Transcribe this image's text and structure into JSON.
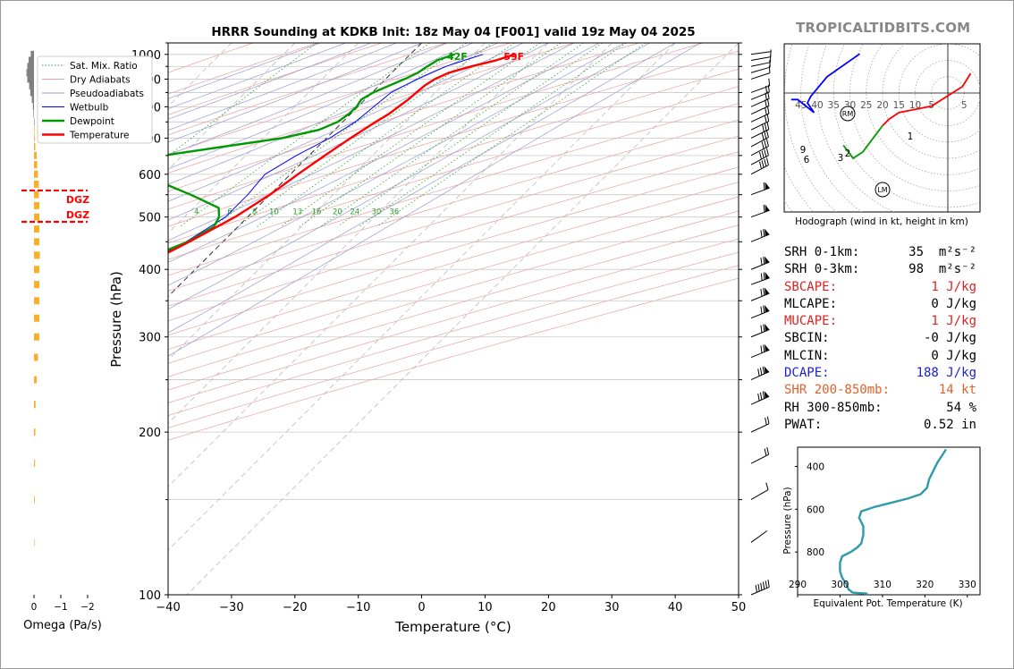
{
  "brand": "TROPICALTIDBITS.COM",
  "title": "HRRR Sounding at KDKB Init: 18z May 04 [F001] valid 19z May 04 2025",
  "legend": [
    {
      "label": "Sat. Mix. Ratio",
      "color": "#2ca02c",
      "style": "dotted"
    },
    {
      "label": "Dry Adiabats",
      "color": "#e8a0a0",
      "style": "solid"
    },
    {
      "label": "Pseudoadiabats",
      "color": "#9a9ad0",
      "style": "solid"
    },
    {
      "label": "Wetbulb",
      "color": "#0000ff",
      "style": "solid"
    },
    {
      "label": "Dewpoint",
      "color": "#009900",
      "style": "solid"
    },
    {
      "label": "Temperature",
      "color": "#ff0000",
      "style": "solid"
    }
  ],
  "colors": {
    "temperature": "#ff0000",
    "dewpoint": "#009900",
    "wetbulb": "#0000ff",
    "omega_up": "#f7b02b",
    "omega_down": "#808080",
    "theta_e": "#2e9aaa",
    "dgz": "#ff0000"
  },
  "chart_data": [
    {
      "type": "line",
      "name": "skewt",
      "title": "HRRR Sounding at KDKB Init: 18z May 04 [F001] valid 19z May 04 2025",
      "xlabel": "Temperature (°C)",
      "ylabel": "Pressure (hPa)",
      "xlim": [
        -40,
        50
      ],
      "ylim": [
        1050,
        100
      ],
      "log_y": true,
      "x_ticks": [
        "−40",
        "−30",
        "−20",
        "−10",
        "0",
        "10",
        "20",
        "30",
        "40",
        "50"
      ],
      "y_ticks": [
        "100",
        "200",
        "300",
        "400",
        "500",
        "600",
        "700",
        "800",
        "900",
        "1000"
      ],
      "mixing_ratio_labels": [
        "1",
        "4",
        "6",
        "8",
        "10",
        "13",
        "16",
        "20",
        "24",
        "30",
        "36"
      ],
      "temperature": [
        [
          1000,
          16.5
        ],
        [
          975,
          14.5
        ],
        [
          950,
          11.5
        ],
        [
          925,
          9.0
        ],
        [
          900,
          7.8
        ],
        [
          875,
          7.2
        ],
        [
          850,
          7.0
        ],
        [
          825,
          6.8
        ],
        [
          800,
          6.4
        ],
        [
          775,
          6.0
        ],
        [
          750,
          5.2
        ],
        [
          700,
          3.8
        ],
        [
          650,
          2.5
        ],
        [
          600,
          1.2
        ],
        [
          550,
          0.0
        ],
        [
          500,
          -2.0
        ],
        [
          450,
          -5.3
        ],
        [
          400,
          -9.5
        ],
        [
          350,
          -14.5
        ],
        [
          300,
          -20.5
        ],
        [
          250,
          -27.5
        ],
        [
          225,
          -32.0
        ],
        [
          200,
          -34.5
        ],
        [
          175,
          -39.5
        ],
        [
          150,
          -44.5
        ],
        [
          125,
          -51.0
        ],
        [
          100,
          -59.0
        ]
      ],
      "dewpoint": [
        [
          1000,
          7.0
        ],
        [
          975,
          5.2
        ],
        [
          950,
          4.6
        ],
        [
          925,
          4.1
        ],
        [
          900,
          3.0
        ],
        [
          875,
          1.6
        ],
        [
          850,
          0.2
        ],
        [
          825,
          -0.6
        ],
        [
          800,
          -0.2
        ],
        [
          775,
          -0.3
        ],
        [
          750,
          -0.8
        ],
        [
          725,
          -2.5
        ],
        [
          700,
          -7.0
        ],
        [
          650,
          -23.0
        ],
        [
          620,
          -27.0
        ],
        [
          600,
          -23.5
        ],
        [
          550,
          -12.5
        ],
        [
          520,
          -6.0
        ],
        [
          500,
          -4.5
        ],
        [
          480,
          -3.8
        ],
        [
          450,
          -5.5
        ],
        [
          400,
          -12.0
        ],
        [
          350,
          -19.5
        ],
        [
          300,
          -29.0
        ],
        [
          250,
          -38.0
        ],
        [
          225,
          -42.5
        ],
        [
          200,
          -47.5
        ],
        [
          175,
          -55.0
        ],
        [
          150,
          -66.0
        ],
        [
          125,
          -76.0
        ],
        [
          100,
          -89.0
        ]
      ],
      "wetbulb": [
        [
          1000,
          11.5
        ],
        [
          975,
          9.5
        ],
        [
          950,
          7.5
        ],
        [
          925,
          6.2
        ],
        [
          900,
          5.0
        ],
        [
          850,
          3.0
        ],
        [
          800,
          2.5
        ],
        [
          750,
          2.0
        ],
        [
          700,
          0.5
        ],
        [
          650,
          -2.0
        ],
        [
          600,
          -4.0
        ],
        [
          550,
          -3.5
        ],
        [
          500,
          -3.5
        ],
        [
          450,
          -5.8
        ],
        [
          400,
          -10.0
        ],
        [
          350,
          -15.0
        ],
        [
          300,
          -20.8
        ],
        [
          250,
          -27.8
        ],
        [
          200,
          -34.8
        ],
        [
          175,
          -39.8
        ],
        [
          150,
          -44.7
        ],
        [
          125,
          -51.2
        ],
        [
          100,
          -59.2
        ]
      ],
      "surface_labels": [
        "42F",
        "59F"
      ],
      "dgz_label": "DGZ"
    },
    {
      "type": "bar",
      "name": "omega",
      "xlabel": "Omega (Pa/s)",
      "x_ticks": [
        "0",
        "−1",
        "−2"
      ],
      "xlim": [
        0.1,
        -2.1
      ],
      "values_note": "",
      "levels": [
        1000,
        975,
        950,
        925,
        900,
        875,
        850,
        825,
        800,
        775,
        750,
        725,
        700,
        675,
        650,
        625,
        600,
        575,
        550,
        525,
        500,
        475,
        450,
        425,
        400,
        375,
        350,
        325,
        300,
        275,
        250,
        225,
        200,
        175,
        150,
        125
      ],
      "values": [
        0.12,
        0.2,
        0.25,
        0.28,
        0.25,
        0.18,
        0.14,
        0.08,
        0.04,
        0.02,
        0.0,
        -0.02,
        -0.03,
        -0.05,
        -0.1,
        -0.12,
        -0.15,
        -0.18,
        -0.18,
        -0.2,
        -0.2,
        -0.2,
        -0.2,
        -0.22,
        -0.2,
        -0.2,
        -0.2,
        -0.2,
        -0.2,
        -0.15,
        -0.1,
        -0.06,
        -0.05,
        -0.04,
        -0.03,
        -0.02
      ]
    },
    {
      "type": "line",
      "name": "hodograph",
      "title": "Hodograph (wind in kt, height in km)",
      "ring_labels": [
        "45",
        "40",
        "35",
        "30",
        "25",
        "20",
        "15",
        "10",
        "5",
        "5"
      ],
      "markers": [
        "RM",
        "LM"
      ],
      "segments": [
        {
          "color": "#ff0000",
          "points": [
            [
              7,
              6
            ],
            [
              4.5,
              2
            ],
            [
              -5,
              -4
            ],
            [
              -15,
              -6
            ],
            [
              -18,
              -8
            ],
            [
              -20,
              -10
            ]
          ]
        },
        {
          "color": "#009900",
          "points": [
            [
              -20,
              -10
            ],
            [
              -23,
              -14
            ],
            [
              -26,
              -18
            ],
            [
              -29,
              -20
            ],
            [
              -32,
              -16
            ]
          ]
        },
        {
          "color": "#0000ff",
          "points": [
            [
              -27,
              12
            ],
            [
              -37,
              5
            ],
            [
              -42,
              -1
            ],
            [
              -43,
              -3
            ],
            [
              -41,
              -6
            ],
            [
              -46,
              -2
            ],
            [
              -48,
              -2
            ]
          ]
        }
      ],
      "height_labels": [
        "1",
        "2",
        "3",
        "6",
        "9"
      ]
    },
    {
      "type": "line",
      "name": "theta_e",
      "xlabel": "Equivalent Pot. Temperature (K)",
      "ylabel": "Pressure (hPa)",
      "x_ticks": [
        "290",
        "300",
        "310",
        "320",
        "330"
      ],
      "y_ticks": [
        "400",
        "600",
        "800"
      ],
      "xlim": [
        290,
        333
      ],
      "ylim": [
        1000,
        310
      ],
      "points": [
        [
          306.5,
          995
        ],
        [
          303,
          990
        ],
        [
          302,
          975
        ],
        [
          301.5,
          950
        ],
        [
          300.5,
          920
        ],
        [
          300,
          890
        ],
        [
          300,
          850
        ],
        [
          300.5,
          820
        ],
        [
          302.5,
          800
        ],
        [
          304,
          780
        ],
        [
          305,
          760
        ],
        [
          305.5,
          720
        ],
        [
          305.5,
          680
        ],
        [
          304.5,
          640
        ],
        [
          305,
          610
        ],
        [
          308,
          590
        ],
        [
          312,
          570
        ],
        [
          316,
          550
        ],
        [
          319,
          530
        ],
        [
          320.5,
          500
        ],
        [
          321,
          460
        ],
        [
          322,
          420
        ],
        [
          323,
          380
        ],
        [
          324,
          350
        ],
        [
          325,
          320
        ]
      ]
    }
  ],
  "stats": [
    {
      "label": "SRH 0-1km:",
      "value": "35",
      "unit": "m²s⁻²",
      "color": "#000000"
    },
    {
      "label": "SRH 0-3km:",
      "value": "98",
      "unit": "m²s⁻²",
      "color": "#000000"
    },
    {
      "label": "SBCAPE:",
      "value": "1 J/kg",
      "unit": "",
      "color": "#e02020"
    },
    {
      "label": "MLCAPE:",
      "value": "0 J/kg",
      "unit": "",
      "color": "#000000"
    },
    {
      "label": "MUCAPE:",
      "value": "1 J/kg",
      "unit": "",
      "color": "#e02020"
    },
    {
      "label": "SBCIN:",
      "value": "-0 J/kg",
      "unit": "",
      "color": "#000000"
    },
    {
      "label": "MLCIN:",
      "value": "0 J/kg",
      "unit": "",
      "color": "#000000"
    },
    {
      "label": "DCAPE:",
      "value": "188 J/kg",
      "unit": "",
      "color": "#2020d0"
    },
    {
      "label": "SHR 200-850mb:",
      "value": "14 kt",
      "unit": "",
      "color": "#e0602a"
    },
    {
      "label": "RH 300-850mb:",
      "value": "54 %",
      "unit": "",
      "color": "#000000"
    },
    {
      "label": "PWAT:",
      "value": "0.52 in",
      "unit": "",
      "color": "#000000"
    }
  ]
}
